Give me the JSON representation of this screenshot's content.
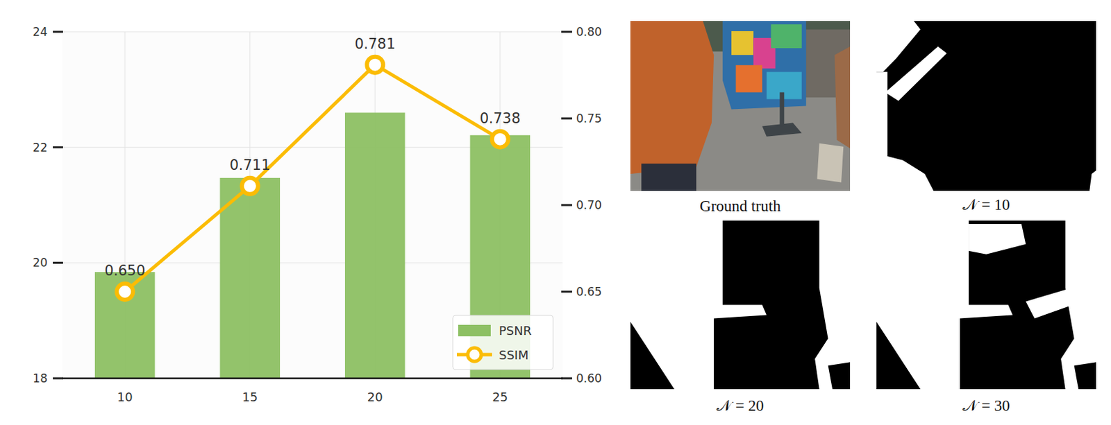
{
  "chart_data": {
    "type": "bar",
    "categories": [
      "10",
      "15",
      "20",
      "25"
    ],
    "series": [
      {
        "name": "PSNR",
        "type": "bar",
        "color": "#8dc063",
        "values": [
          19.84,
          21.47,
          22.6,
          22.21
        ]
      },
      {
        "name": "SSIM",
        "type": "line",
        "axis": "y2",
        "color": "#fbbc05",
        "marker": "circle",
        "data_labels": true,
        "values": [
          0.65,
          0.711,
          0.781,
          0.738
        ],
        "value_labels": [
          "0.650",
          "0.711",
          "0.781",
          "0.738"
        ]
      }
    ],
    "ylim": [
      18,
      24
    ],
    "yticks": [
      18,
      20,
      22,
      24
    ],
    "y2lim": [
      0.6,
      0.8
    ],
    "y2ticks": [
      {
        "value": 0.6,
        "label": "0.60"
      },
      0.65,
      {
        "value": 0.7,
        "label": "0.70"
      },
      0.75,
      {
        "value": 0.8,
        "label": "0.80"
      }
    ],
    "grid": true,
    "legend": "lower right"
  },
  "images": [
    {
      "caption": "Ground truth"
    },
    {
      "caption": "𝒩 = 10"
    },
    {
      "caption": "𝒩 = 20"
    },
    {
      "caption": "𝒩 = 30"
    }
  ]
}
